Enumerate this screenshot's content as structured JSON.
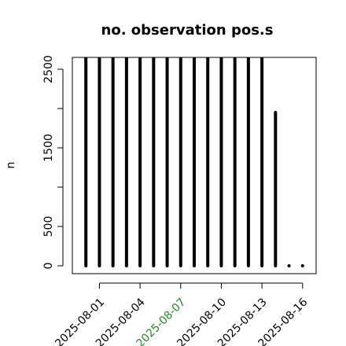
{
  "chart_data": {
    "type": "bar",
    "title": "no. observation pos.s",
    "y_label": "n",
    "x": [
      "2025-07-31",
      "2025-08-01",
      "2025-08-02",
      "2025-08-03",
      "2025-08-04",
      "2025-08-05",
      "2025-08-06",
      "2025-08-07",
      "2025-08-08",
      "2025-08-09",
      "2025-08-10",
      "2025-08-11",
      "2025-08-12",
      "2025-08-13",
      "2025-08-14",
      "2025-08-15",
      "2025-08-16"
    ],
    "values": [
      2650,
      2650,
      2650,
      2650,
      2650,
      2650,
      2650,
      2650,
      2650,
      2650,
      2650,
      2650,
      2650,
      2650,
      1950,
      0,
      0
    ],
    "color": "#000000",
    "xlim": [
      "2025-07-30",
      "2025-08-17"
    ],
    "xticks": [
      "2025-08-01",
      "2025-08-04",
      "2025-08-07",
      "2025-08-10",
      "2025-08-13",
      "2025-08-16"
    ],
    "xtick_colors": [
      "#000000",
      "#000000",
      "#228b22",
      "#000000",
      "#000000",
      "#000000"
    ],
    "ylim": [
      -100,
      2650
    ],
    "yticks": [
      0,
      500,
      {
        "value": 1000,
        "label": null
      },
      1500,
      {
        "value": 2000,
        "label": null
      },
      2500
    ]
  }
}
